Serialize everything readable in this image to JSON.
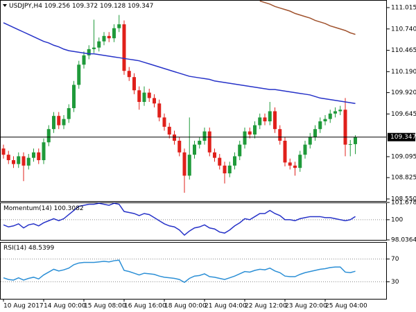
{
  "chart_data": [
    {
      "type": "candlestick",
      "title": "USDJPY,H4",
      "categories": [
        "10 Aug 2017",
        null,
        null,
        null,
        null,
        null,
        null,
        null,
        "14 Aug 00:00",
        null,
        null,
        null,
        null,
        null,
        null,
        null,
        "15 Aug 08:00",
        null,
        null,
        null,
        null,
        null,
        null,
        null,
        "16 Aug 16:00",
        null,
        null,
        null,
        null,
        null,
        null,
        null,
        "18 Aug 00:00",
        null,
        null,
        null,
        null,
        null,
        null,
        null,
        "21 Aug 04:00",
        null,
        null,
        null,
        null,
        null,
        null,
        null,
        "22 Aug 12:00",
        null,
        null,
        null,
        null,
        null,
        null,
        null,
        "23 Aug 20:00",
        null,
        null,
        null,
        null,
        null,
        null,
        null,
        "25 Aug 04:00",
        null,
        null,
        null,
        null,
        null,
        null
      ],
      "open": [
        109.2,
        109.12,
        109.05,
        109.0,
        109.1,
        108.98,
        109.08,
        109.15,
        109.05,
        109.28,
        109.45,
        109.62,
        109.5,
        109.58,
        109.72,
        110.02,
        110.28,
        110.4,
        110.48,
        110.5,
        110.58,
        110.65,
        110.62,
        110.75,
        110.8,
        110.2,
        110.12,
        109.95,
        109.8,
        109.92,
        109.85,
        109.78,
        109.6,
        109.48,
        109.38,
        109.3,
        109.15,
        108.85,
        109.12,
        109.25,
        109.3,
        109.42,
        109.15,
        109.08,
        108.98,
        108.88,
        108.98,
        109.1,
        109.25,
        109.42,
        109.38,
        109.5,
        109.6,
        109.55,
        109.68,
        109.45,
        109.3,
        109.02,
        108.98,
        108.95,
        109.12,
        109.25,
        109.35,
        109.45,
        109.55,
        109.58,
        109.65,
        109.68,
        109.7,
        109.25,
        109.256
      ],
      "high": [
        109.25,
        109.17,
        109.1,
        109.15,
        109.15,
        109.13,
        109.2,
        109.2,
        109.33,
        109.5,
        109.67,
        109.67,
        109.63,
        109.77,
        110.07,
        110.33,
        110.45,
        110.53,
        110.86,
        110.63,
        110.7,
        110.7,
        110.8,
        110.92,
        110.85,
        110.25,
        110.17,
        110.0,
        110.0,
        109.97,
        109.9,
        109.83,
        109.65,
        109.53,
        109.43,
        109.35,
        109.2,
        109.6,
        109.3,
        109.35,
        109.47,
        109.47,
        109.2,
        109.13,
        109.03,
        109.03,
        109.15,
        109.3,
        109.47,
        109.47,
        109.55,
        109.65,
        109.65,
        109.8,
        109.73,
        109.5,
        109.35,
        109.07,
        109.03,
        109.17,
        109.3,
        109.4,
        109.5,
        109.6,
        109.63,
        109.7,
        109.73,
        109.75,
        109.85,
        109.31,
        109.372
      ],
      "low": [
        109.07,
        109.0,
        108.95,
        108.95,
        108.78,
        108.93,
        109.03,
        109.0,
        109.0,
        109.23,
        109.4,
        109.45,
        109.45,
        109.53,
        109.67,
        109.97,
        110.23,
        110.35,
        110.43,
        110.45,
        110.53,
        110.57,
        110.57,
        110.7,
        110.15,
        110.07,
        109.9,
        109.7,
        109.75,
        109.8,
        109.73,
        109.55,
        109.43,
        109.33,
        109.25,
        109.1,
        108.63,
        108.8,
        109.07,
        109.2,
        109.25,
        109.1,
        109.03,
        108.93,
        108.75,
        108.83,
        108.93,
        109.05,
        109.2,
        109.33,
        109.33,
        109.45,
        109.5,
        109.5,
        109.4,
        109.25,
        108.97,
        108.93,
        108.85,
        108.9,
        109.07,
        109.2,
        109.3,
        109.4,
        109.5,
        109.53,
        109.6,
        109.63,
        109.1,
        109.1,
        109.128
      ],
      "close": [
        109.12,
        109.05,
        109.0,
        109.1,
        108.98,
        109.08,
        109.15,
        109.05,
        109.28,
        109.45,
        109.62,
        109.5,
        109.58,
        109.72,
        110.02,
        110.28,
        110.4,
        110.48,
        110.5,
        110.58,
        110.65,
        110.62,
        110.75,
        110.8,
        110.2,
        110.12,
        109.95,
        109.8,
        109.92,
        109.85,
        109.78,
        109.6,
        109.48,
        109.38,
        109.3,
        109.15,
        108.85,
        109.12,
        109.25,
        109.3,
        109.42,
        109.15,
        109.08,
        108.98,
        108.88,
        108.98,
        109.1,
        109.25,
        109.42,
        109.38,
        109.5,
        109.6,
        109.55,
        109.68,
        109.45,
        109.3,
        109.02,
        108.98,
        108.95,
        109.12,
        109.25,
        109.35,
        109.45,
        109.55,
        109.58,
        109.65,
        109.68,
        109.7,
        109.25,
        109.256,
        109.347
      ],
      "up_color": "#1f9a3a",
      "down_color": "#e0201b",
      "series": [
        {
          "color": "#2632c8",
          "values": [
            110.82,
            110.79,
            110.76,
            110.73,
            110.7,
            110.67,
            110.64,
            110.61,
            110.58,
            110.56,
            110.53,
            110.51,
            110.48,
            110.46,
            110.45,
            110.44,
            110.43,
            110.42,
            110.42,
            110.41,
            110.4,
            110.39,
            110.38,
            110.37,
            110.36,
            110.35,
            110.34,
            110.33,
            110.31,
            110.29,
            110.27,
            110.25,
            110.23,
            110.21,
            110.19,
            110.17,
            110.15,
            110.13,
            110.12,
            110.11,
            110.1,
            110.09,
            110.07,
            110.06,
            110.05,
            110.04,
            110.03,
            110.02,
            110.01,
            110.0,
            109.99,
            109.98,
            109.97,
            109.96,
            109.96,
            109.95,
            109.94,
            109.93,
            109.92,
            109.91,
            109.9,
            109.89,
            109.87,
            109.85,
            109.84,
            109.83,
            109.82,
            109.81,
            109.8,
            109.79,
            109.78
          ]
        },
        {
          "color": "#a0522d",
          "values": [
            null,
            null,
            null,
            null,
            null,
            null,
            null,
            null,
            null,
            null,
            null,
            null,
            null,
            null,
            null,
            null,
            null,
            null,
            null,
            null,
            null,
            null,
            null,
            null,
            null,
            null,
            null,
            null,
            null,
            null,
            null,
            null,
            null,
            null,
            null,
            null,
            null,
            null,
            null,
            null,
            null,
            null,
            null,
            null,
            null,
            null,
            null,
            null,
            null,
            null,
            null,
            111.1,
            111.08,
            111.06,
            111.03,
            111.01,
            110.99,
            110.97,
            110.94,
            110.92,
            110.9,
            110.88,
            110.85,
            110.83,
            110.81,
            110.78,
            110.76,
            110.74,
            110.72,
            110.69,
            110.67
          ]
        }
      ],
      "ylim": [
        108.523,
        111.113
      ],
      "yticks": [
        111.015,
        {
          "value": 110.74,
          "label": "110.740"
        },
        110.465,
        {
          "value": 110.19,
          "label": "110.190"
        },
        {
          "value": 109.92,
          "label": "109.920"
        },
        109.645,
        109.095,
        108.825,
        {
          "value": 108.55,
          "label": "108.550"
        }
      ]
    },
    {
      "type": "line",
      "title": "Momentum(14)",
      "color": "#2632c8",
      "values": [
        99.5,
        99.3,
        99.4,
        99.6,
        99.2,
        99.5,
        99.6,
        99.4,
        99.7,
        99.9,
        100.1,
        99.9,
        100.1,
        100.5,
        100.9,
        101.3,
        101.4,
        101.5,
        101.5,
        101.6,
        101.5,
        101.4,
        101.6,
        101.5,
        100.8,
        100.7,
        100.6,
        100.4,
        100.6,
        100.5,
        100.2,
        99.9,
        99.6,
        99.4,
        99.3,
        99.0,
        98.5,
        98.9,
        99.2,
        99.3,
        99.5,
        99.2,
        99.1,
        98.8,
        98.7,
        99.0,
        99.4,
        99.7,
        100.1,
        100.0,
        100.3,
        100.6,
        100.6,
        100.9,
        100.6,
        100.4,
        100.0,
        100.0,
        99.9,
        100.1,
        100.2,
        100.3,
        100.3,
        100.3,
        100.2,
        100.2,
        100.1,
        100.0,
        99.9,
        100.0,
        100.3082
      ],
      "ylim": [
        98.0364,
        101.6784
      ],
      "yticks": [
        101.6784,
        100,
        98.0364
      ],
      "levels": [
        100
      ]
    },
    {
      "type": "line",
      "title": "RSI(14)",
      "color": "#2b8fd6",
      "values": [
        37,
        34,
        33,
        37,
        33,
        36,
        38,
        35,
        42,
        47,
        52,
        49,
        51,
        54,
        60,
        63,
        64,
        64,
        64,
        65,
        66,
        65,
        67,
        68,
        50,
        48,
        45,
        42,
        45,
        44,
        43,
        40,
        38,
        37,
        36,
        34,
        29,
        36,
        40,
        41,
        44,
        39,
        38,
        36,
        34,
        37,
        40,
        44,
        48,
        47,
        50,
        52,
        51,
        54,
        49,
        46,
        40,
        39,
        39,
        43,
        46,
        48,
        50,
        52,
        53,
        55,
        56,
        56,
        47,
        46,
        48.5399
      ],
      "ylim": [
        0,
        100
      ],
      "yticks": [
        70,
        30
      ],
      "levels": [
        70,
        30
      ]
    }
  ]
}
